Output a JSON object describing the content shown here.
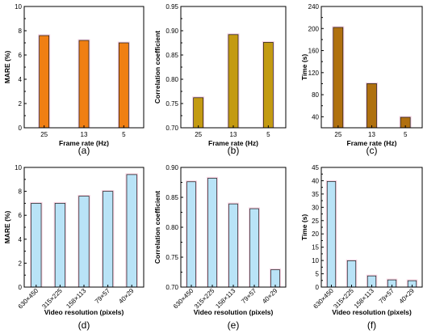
{
  "panels": [
    {
      "id": "a",
      "letter": "(a)",
      "chart_data": {
        "type": "bar",
        "xlabel": "Frame rate (Hz)",
        "ylabel": "MARE (%)",
        "categories": [
          "25",
          "13",
          "5"
        ],
        "values": [
          7.6,
          7.2,
          7.0
        ],
        "ylim": [
          0,
          10
        ],
        "yticks": [
          0,
          2,
          4,
          6,
          8,
          10
        ],
        "ytick_labels": [
          "0",
          "2",
          "4",
          "6",
          "8",
          "10"
        ],
        "bar_color": "#f07f13",
        "bar_edge": "#1a1a1a",
        "shadow_color": "#f4c4d8",
        "rotate_xticks": false
      }
    },
    {
      "id": "b",
      "letter": "(b)",
      "chart_data": {
        "type": "bar",
        "xlabel": "Frame rate (Hz)",
        "ylabel": "Correlation coefficient",
        "categories": [
          "25",
          "13",
          "5"
        ],
        "values": [
          0.762,
          0.892,
          0.876
        ],
        "ylim": [
          0.7,
          0.95
        ],
        "yticks": [
          0.7,
          0.75,
          0.8,
          0.85,
          0.9,
          0.95
        ],
        "ytick_labels": [
          "0.70",
          "0.75",
          "0.80",
          "0.85",
          "0.90",
          "0.95"
        ],
        "bar_color": "#c49a12",
        "bar_edge": "#1a1a1a",
        "shadow_color": "#f4c4d8",
        "rotate_xticks": false
      }
    },
    {
      "id": "c",
      "letter": "(c)",
      "chart_data": {
        "type": "bar",
        "xlabel": "Frame rate (Hz)",
        "ylabel": "Time (s)",
        "categories": [
          "25",
          "13",
          "5"
        ],
        "values": [
          202,
          100,
          39
        ],
        "ylim": [
          20,
          240
        ],
        "yticks": [
          40,
          80,
          120,
          160,
          200,
          240
        ],
        "ytick_labels": [
          "40",
          "80",
          "120",
          "160",
          "200",
          "240"
        ],
        "bar_color": "#b0700f",
        "bar_edge": "#1a1a1a",
        "shadow_color": "#f4c4d8",
        "rotate_xticks": false
      }
    },
    {
      "id": "d",
      "letter": "(d)",
      "chart_data": {
        "type": "bar",
        "xlabel": "Video resolution (pixels)",
        "ylabel": "MARE (%)",
        "categories": [
          "630×450",
          "315×225",
          "158×113",
          "79×57",
          "40×29"
        ],
        "values": [
          7.0,
          7.0,
          7.6,
          8.0,
          9.4
        ],
        "ylim": [
          0,
          10
        ],
        "yticks": [
          0,
          2,
          4,
          6,
          8,
          10
        ],
        "ytick_labels": [
          "0",
          "2",
          "4",
          "6",
          "8",
          "10"
        ],
        "bar_color": "#b9e3f7",
        "bar_edge": "#1a1a1a",
        "shadow_color": "#f4c4d8",
        "rotate_xticks": true
      }
    },
    {
      "id": "e",
      "letter": "(e)",
      "chart_data": {
        "type": "bar",
        "xlabel": "Video resolution (pixels)",
        "ylabel": "Correlation coefficient",
        "categories": [
          "630×450",
          "315×225",
          "158×113",
          "79×57",
          "40×29"
        ],
        "values": [
          0.876,
          0.882,
          0.839,
          0.831,
          0.729
        ],
        "ylim": [
          0.7,
          0.9
        ],
        "yticks": [
          0.7,
          0.75,
          0.8,
          0.85,
          0.9
        ],
        "ytick_labels": [
          "0.70",
          "0.75",
          "0.80",
          "0.85",
          "0.90"
        ],
        "bar_color": "#b9e3f7",
        "bar_edge": "#1a1a1a",
        "shadow_color": "#f4c4d8",
        "rotate_xticks": true
      }
    },
    {
      "id": "f",
      "letter": "(f)",
      "chart_data": {
        "type": "bar",
        "xlabel": "Video resolution (pixels)",
        "ylabel": "Time (s)",
        "categories": [
          "630×450",
          "315×225",
          "158×113",
          "79×57",
          "40×29"
        ],
        "values": [
          39.7,
          9.9,
          4.2,
          2.7,
          2.4
        ],
        "ylim": [
          0,
          45
        ],
        "yticks": [
          0,
          5,
          10,
          15,
          20,
          25,
          30,
          35,
          40,
          45
        ],
        "ytick_labels": [
          "0",
          "5",
          "10",
          "15",
          "20",
          "25",
          "30",
          "35",
          "40",
          "45"
        ],
        "bar_color": "#b9e3f7",
        "bar_edge": "#1a1a1a",
        "shadow_color": "#f4c4d8",
        "rotate_xticks": true
      }
    }
  ]
}
